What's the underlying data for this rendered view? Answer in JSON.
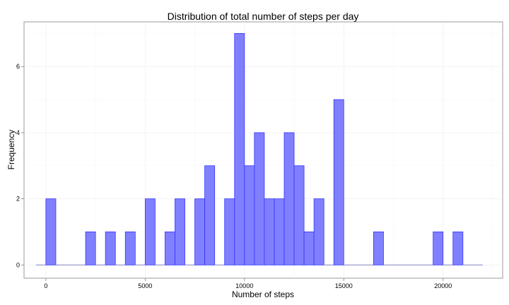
{
  "chart_data": {
    "type": "bar",
    "title": "Distribution of total number of steps per day",
    "xlabel": "Number of steps",
    "ylabel": "Frequency",
    "xlim": [
      -1100,
      23000
    ],
    "ylim": [
      -0.4,
      7.35
    ],
    "x_ticks": [
      0,
      5000,
      10000,
      15000,
      20000
    ],
    "y_ticks": [
      0,
      2,
      4,
      6
    ],
    "grid": true,
    "bin_width": 500,
    "bin_start": -500,
    "values": [
      0,
      2,
      0,
      0,
      0,
      1,
      0,
      1,
      0,
      1,
      0,
      2,
      0,
      1,
      2,
      0,
      2,
      3,
      0,
      2,
      7,
      3,
      4,
      2,
      2,
      4,
      3,
      1,
      2,
      0,
      5,
      0,
      0,
      0,
      1,
      0,
      0,
      0,
      0,
      0,
      1,
      0,
      1,
      0,
      0
    ],
    "colors": {
      "bar_fill": "#8080ff",
      "bar_stroke": "#3333ff"
    }
  }
}
